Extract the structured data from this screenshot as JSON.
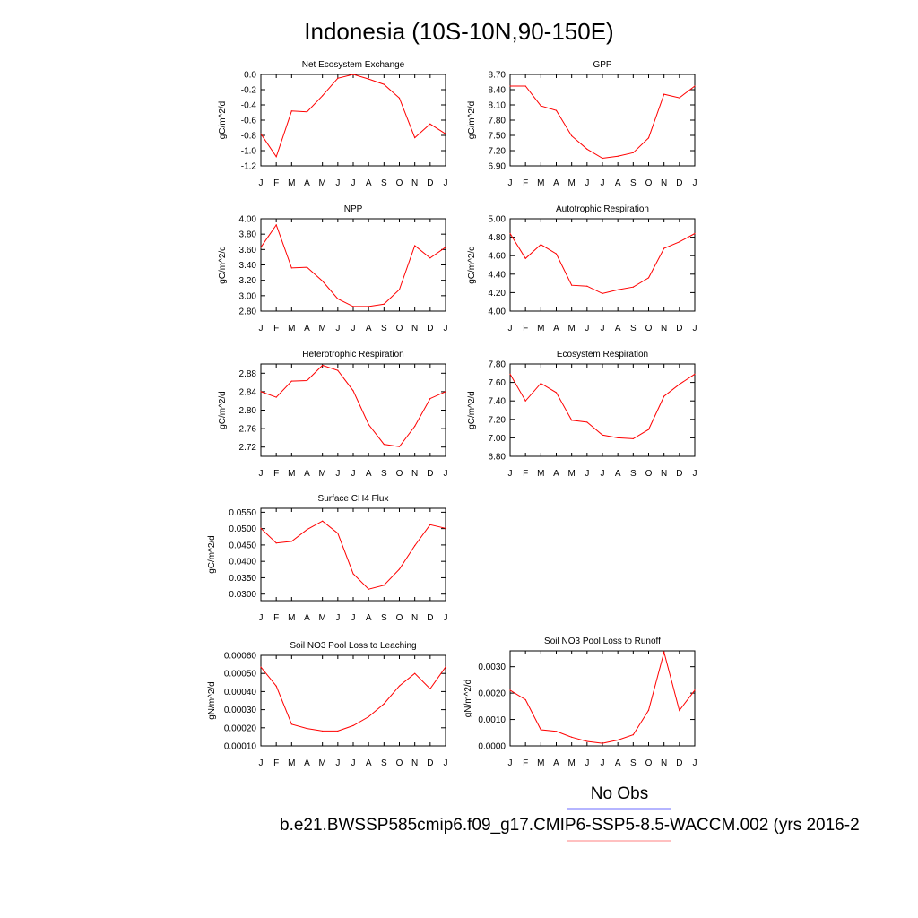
{
  "page_title": "Indonesia (10S-10N,90-150E)",
  "legend": {
    "obs_label": "No Obs",
    "obs_color": "#6b6bff",
    "case_label": "b.e21.BWSSP585cmip6.f09_g17.CMIP6-SSP5-8.5-WACCM.002 (yrs 2016-2",
    "case_color": "#ff8080"
  },
  "line_color": "#ff0000",
  "chart_data": [
    {
      "type": "line",
      "title": "Net Ecosystem Exchange",
      "ylabel": "gC/m^2/d",
      "categories": [
        "J",
        "F",
        "M",
        "A",
        "M",
        "J",
        "J",
        "A",
        "S",
        "O",
        "N",
        "D",
        "J"
      ],
      "values": [
        -0.78,
        -1.08,
        -0.48,
        -0.49,
        -0.28,
        -0.05,
        0.0,
        -0.06,
        -0.13,
        -0.31,
        -0.83,
        -0.65,
        -0.78
      ],
      "ylim": [
        -1.2,
        0.0
      ],
      "yticks": [
        0.0,
        -0.2,
        -0.4,
        -0.6,
        -0.8,
        -1.0,
        -1.2
      ],
      "ytick_labels": [
        "0.0",
        "-0.2",
        "-0.4",
        "-0.6",
        "-0.8",
        "-1.0",
        "-1.2"
      ]
    },
    {
      "type": "line",
      "title": "GPP",
      "ylabel": "gC/m^2/d",
      "categories": [
        "J",
        "F",
        "M",
        "A",
        "M",
        "J",
        "J",
        "A",
        "S",
        "O",
        "N",
        "D",
        "J"
      ],
      "values": [
        8.47,
        8.47,
        8.08,
        7.99,
        7.49,
        7.23,
        7.05,
        7.09,
        7.16,
        7.45,
        8.31,
        8.24,
        8.47
      ],
      "ylim": [
        6.9,
        8.7
      ],
      "yticks": [
        8.7,
        8.4,
        8.1,
        7.8,
        7.5,
        7.2,
        6.9
      ],
      "ytick_labels": [
        "8.70",
        "8.40",
        "8.10",
        "7.80",
        "7.50",
        "7.20",
        "6.90"
      ]
    },
    {
      "type": "line",
      "title": "NPP",
      "ylabel": "gC/m^2/d",
      "categories": [
        "J",
        "F",
        "M",
        "A",
        "M",
        "J",
        "J",
        "A",
        "S",
        "O",
        "N",
        "D",
        "J"
      ],
      "values": [
        3.63,
        3.92,
        3.36,
        3.37,
        3.19,
        2.96,
        2.86,
        2.86,
        2.89,
        3.08,
        3.65,
        3.49,
        3.63
      ],
      "ylim": [
        2.8,
        4.0
      ],
      "yticks": [
        4.0,
        3.8,
        3.6,
        3.4,
        3.2,
        3.0,
        2.8
      ],
      "ytick_labels": [
        "4.00",
        "3.80",
        "3.60",
        "3.40",
        "3.20",
        "3.00",
        "2.80"
      ]
    },
    {
      "type": "line",
      "title": "Autotrophic Respiration",
      "ylabel": "gC/m^2/d",
      "categories": [
        "J",
        "F",
        "M",
        "A",
        "M",
        "J",
        "J",
        "A",
        "S",
        "O",
        "N",
        "D",
        "J"
      ],
      "values": [
        4.84,
        4.57,
        4.72,
        4.62,
        4.28,
        4.27,
        4.19,
        4.23,
        4.26,
        4.36,
        4.68,
        4.75,
        4.84
      ],
      "ylim": [
        4.0,
        5.0
      ],
      "yticks": [
        5.0,
        4.8,
        4.6,
        4.4,
        4.2,
        4.0
      ],
      "ytick_labels": [
        "5.00",
        "4.80",
        "4.60",
        "4.40",
        "4.20",
        "4.00"
      ]
    },
    {
      "type": "line",
      "title": "Heterotrophic Respiration",
      "ylabel": "gC/m^2/d",
      "categories": [
        "J",
        "F",
        "M",
        "A",
        "M",
        "J",
        "J",
        "A",
        "S",
        "O",
        "N",
        "D",
        "J"
      ],
      "values": [
        2.84,
        2.828,
        2.863,
        2.864,
        2.897,
        2.886,
        2.842,
        2.769,
        2.726,
        2.721,
        2.765,
        2.825,
        2.84
      ],
      "ylim": [
        2.7,
        2.9
      ],
      "yticks": [
        2.88,
        2.84,
        2.8,
        2.76,
        2.72
      ],
      "ytick_labels": [
        "2.88",
        "2.84",
        "2.80",
        "2.76",
        "2.72"
      ]
    },
    {
      "type": "line",
      "title": "Ecosystem Respiration",
      "ylabel": "gC/m^2/d",
      "categories": [
        "J",
        "F",
        "M",
        "A",
        "M",
        "J",
        "J",
        "A",
        "S",
        "O",
        "N",
        "D",
        "J"
      ],
      "values": [
        7.69,
        7.4,
        7.59,
        7.49,
        7.19,
        7.17,
        7.03,
        7.0,
        6.99,
        7.09,
        7.45,
        7.58,
        7.69
      ],
      "ylim": [
        6.8,
        7.8
      ],
      "yticks": [
        7.8,
        7.6,
        7.4,
        7.2,
        7.0,
        6.8
      ],
      "ytick_labels": [
        "7.80",
        "7.60",
        "7.40",
        "7.20",
        "7.00",
        "6.80"
      ]
    },
    {
      "type": "line",
      "title": "Surface CH4 Flux",
      "ylabel": "gC/m^2/d",
      "categories": [
        "J",
        "F",
        "M",
        "A",
        "M",
        "J",
        "J",
        "A",
        "S",
        "O",
        "N",
        "D",
        "J"
      ],
      "values": [
        0.0501,
        0.0456,
        0.0461,
        0.0497,
        0.0523,
        0.0486,
        0.0362,
        0.0315,
        0.0327,
        0.0376,
        0.0448,
        0.0512,
        0.0501
      ],
      "ylim": [
        0.028,
        0.0562
      ],
      "yticks": [
        0.055,
        0.05,
        0.045,
        0.04,
        0.035,
        0.03
      ],
      "ytick_labels": [
        "0.0550",
        "0.0500",
        "0.0450",
        "0.0400",
        "0.0350",
        "0.0300"
      ]
    },
    {
      "type": "line",
      "title": "Soil NO3 Pool Loss to Leaching",
      "ylabel": "gN/m^2/d",
      "categories": [
        "J",
        "F",
        "M",
        "A",
        "M",
        "J",
        "J",
        "A",
        "S",
        "O",
        "N",
        "D",
        "J"
      ],
      "values": [
        0.000535,
        0.00043,
        0.00022,
        0.000196,
        0.000182,
        0.000182,
        0.000212,
        0.000261,
        0.000332,
        0.000431,
        0.0005,
        0.000415,
        0.000535
      ],
      "ylim": [
        0.0001,
        0.0006
      ],
      "yticks": [
        0.0006,
        0.0005,
        0.0004,
        0.0003,
        0.0002,
        0.0001
      ],
      "ytick_labels": [
        "0.00060",
        "0.00050",
        "0.00040",
        "0.00030",
        "0.00020",
        "0.00010"
      ]
    },
    {
      "type": "line",
      "title": "Soil NO3 Pool Loss to Runoff",
      "ylabel": "gN/m^2/d",
      "categories": [
        "J",
        "F",
        "M",
        "A",
        "M",
        "J",
        "J",
        "A",
        "S",
        "O",
        "N",
        "D",
        "J"
      ],
      "values": [
        0.00211,
        0.00175,
        0.00061,
        0.00055,
        0.00033,
        0.00017,
        0.0001,
        0.00022,
        0.00042,
        0.00135,
        0.00355,
        0.00134,
        0.00211
      ],
      "ylim": [
        0.0,
        0.0036
      ],
      "yticks": [
        0.003,
        0.002,
        0.001,
        0.0
      ],
      "ytick_labels": [
        "0.0030",
        "0.0020",
        "0.0010",
        "0.0000"
      ]
    }
  ]
}
